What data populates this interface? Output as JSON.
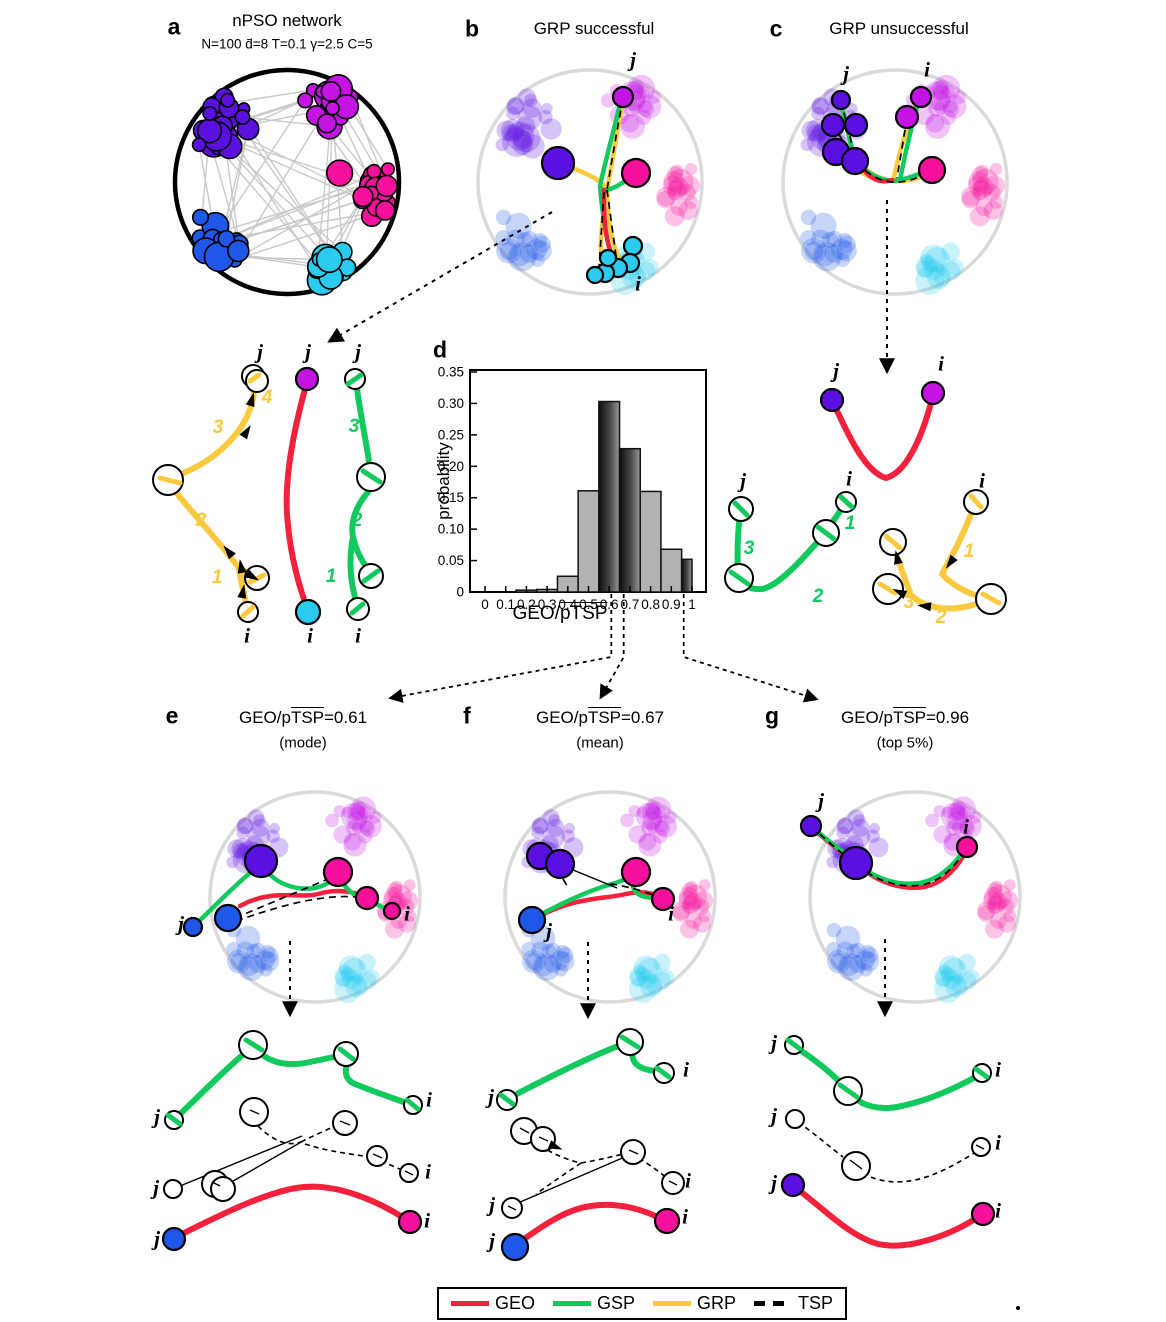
{
  "labels": {
    "j": "j",
    "i": "i"
  },
  "hops": [
    "1",
    "2",
    "3",
    "4"
  ],
  "panels": {
    "a": {
      "letter": "a",
      "title": "nPSO network",
      "subtitle": "N=100 d̄=8 T=0.1 γ=2.5 C=5"
    },
    "b": {
      "letter": "b",
      "title": "GRP successful"
    },
    "c": {
      "letter": "c",
      "title": "GRP unsuccessful"
    },
    "d": {
      "letter": "d"
    },
    "e": {
      "letter": "e",
      "title_pre": "GEO/p",
      "title_over": "TSP",
      "title_post": "=0.61",
      "note": "(mode)"
    },
    "f": {
      "letter": "f",
      "title_pre": "GEO/p",
      "title_over": "TSP",
      "title_post": "=0.67",
      "note": "(mean)"
    },
    "g": {
      "letter": "g",
      "title_pre": "GEO/p",
      "title_over": "TSP",
      "title_post": "=0.96",
      "note": "(top 5%)"
    }
  },
  "chart_data": {
    "type": "bar",
    "title": "",
    "xlabel_pre": "GEO/",
    "xlabel_over": "pTSP",
    "ylabel": "probability",
    "xlim": [
      -0.05,
      1.05
    ],
    "ylim": [
      0,
      0.35
    ],
    "grid": false,
    "x_ticks": [
      "0",
      "0.1",
      "0.2",
      "0.3",
      "0.4",
      "0.5",
      "0.6",
      "0.7",
      "0.8",
      "0.9",
      "1"
    ],
    "y_ticks": [
      "0",
      "0.05",
      "0.10",
      "0.15",
      "0.20",
      "0.25",
      "0.30",
      "0.35"
    ],
    "bins": [
      {
        "x0": 0.15,
        "x1": 0.25,
        "p": 0.003,
        "dark": false
      },
      {
        "x0": 0.25,
        "x1": 0.35,
        "p": 0.004,
        "dark": false
      },
      {
        "x0": 0.35,
        "x1": 0.45,
        "p": 0.025,
        "dark": false
      },
      {
        "x0": 0.45,
        "x1": 0.55,
        "p": 0.161,
        "dark": false
      },
      {
        "x0": 0.55,
        "x1": 0.65,
        "p": 0.303,
        "dark": true
      },
      {
        "x0": 0.65,
        "x1": 0.75,
        "p": 0.228,
        "dark": true
      },
      {
        "x0": 0.75,
        "x1": 0.85,
        "p": 0.16,
        "dark": false
      },
      {
        "x0": 0.85,
        "x1": 0.95,
        "p": 0.068,
        "dark": false
      },
      {
        "x0": 0.95,
        "x1": 1.0,
        "p": 0.052,
        "dark": true
      }
    ],
    "markers": [
      0.61,
      0.67,
      0.96
    ]
  },
  "legend": {
    "items": [
      {
        "label": "GEO",
        "color": "#F5213C",
        "dash": false
      },
      {
        "label": "GSP",
        "color": "#12C95E",
        "dash": false
      },
      {
        "label": "GRP",
        "color": "#FBC93D",
        "dash": false
      },
      {
        "label": "TSP",
        "color": "#000000",
        "dash": true
      }
    ]
  },
  "colors": {
    "geo": "#F5213C",
    "gsp": "#12C95E",
    "grp": "#FBC93D",
    "violet": "#5A11E0",
    "pm": "#C413E3",
    "pink": "#F5119B",
    "blue": "#1F57E8",
    "cyan": "#29CBEE"
  }
}
